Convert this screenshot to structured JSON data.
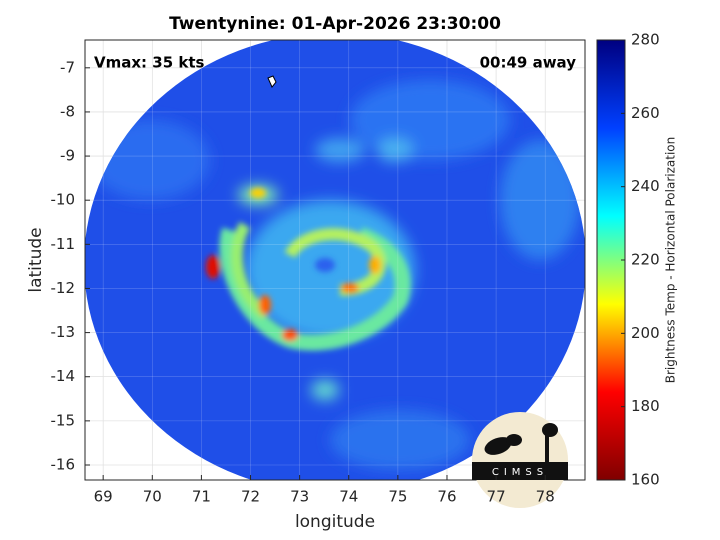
{
  "chart_data": {
    "type": "image-map",
    "title": "Twentynine: 01-Apr-2026 23:30:00",
    "annotations": [
      "Vmax: 35 kts",
      "00:49 away"
    ],
    "xlabel": "longitude",
    "ylabel": "latitude",
    "xlim": [
      68.63,
      78.81
    ],
    "xticks": [
      69,
      70,
      71,
      72,
      73,
      74,
      75,
      76,
      77,
      78
    ],
    "ylim": [
      -16.34,
      -6.37
    ],
    "yticks": [
      -16,
      -15,
      -14,
      -13,
      -12,
      -11,
      -10,
      -9,
      -8,
      -7
    ],
    "grid": true,
    "colorbar": {
      "label": "Brightness Temp - Horizontal Polarization",
      "lim": [
        160,
        280
      ],
      "ticks": [
        160,
        180,
        200,
        220,
        240,
        260,
        280
      ],
      "colors": [
        "#800000",
        "#ff0000",
        "#ffff00",
        "#00ffff",
        "#0040ff",
        "#000080"
      ]
    },
    "logo": "CIMSS"
  }
}
